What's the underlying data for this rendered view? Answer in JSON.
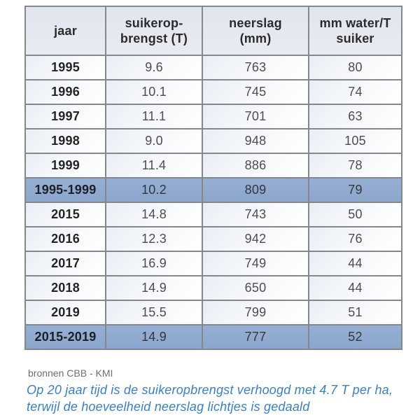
{
  "colors": {
    "highlight_row": "#8fa9ce",
    "header_bg": "#e4e6ee",
    "border": "#84878c",
    "caption_blue": "#3a80c4",
    "source_gray": "#6d6e71"
  },
  "table": {
    "headers": [
      {
        "key": "jaar",
        "label": "jaar"
      },
      {
        "key": "sugar",
        "label": "suikerop-\nbrengst (T)"
      },
      {
        "key": "rain",
        "label": "neerslag\n(mm)"
      },
      {
        "key": "ratio",
        "label": "mm water/T\nsuiker"
      }
    ],
    "rows": [
      {
        "jaar": "1995",
        "sugar": "9.6",
        "rain": "763",
        "ratio": "80",
        "highlight": false
      },
      {
        "jaar": "1996",
        "sugar": "10.1",
        "rain": "745",
        "ratio": "74",
        "highlight": false
      },
      {
        "jaar": "1997",
        "sugar": "11.1",
        "rain": "701",
        "ratio": "63",
        "highlight": false
      },
      {
        "jaar": "1998",
        "sugar": "9.0",
        "rain": "948",
        "ratio": "105",
        "highlight": false
      },
      {
        "jaar": "1999",
        "sugar": "11.4",
        "rain": "886",
        "ratio": "78",
        "highlight": false
      },
      {
        "jaar": "1995-1999",
        "sugar": "10.2",
        "rain": "809",
        "ratio": "79",
        "highlight": true
      },
      {
        "jaar": "2015",
        "sugar": "14.8",
        "rain": "743",
        "ratio": "50",
        "highlight": false
      },
      {
        "jaar": "2016",
        "sugar": "12.3",
        "rain": "942",
        "ratio": "76",
        "highlight": false
      },
      {
        "jaar": "2017",
        "sugar": "16.9",
        "rain": "749",
        "ratio": "44",
        "highlight": false
      },
      {
        "jaar": "2018",
        "sugar": "14.9",
        "rain": "650",
        "ratio": "44",
        "highlight": false
      },
      {
        "jaar": "2019",
        "sugar": "15.5",
        "rain": "799",
        "ratio": "51",
        "highlight": false
      },
      {
        "jaar": "2015-2019",
        "sugar": "14.9",
        "rain": "777",
        "ratio": "52",
        "highlight": true
      }
    ]
  },
  "source": "bronnen CBB - KMI",
  "caption": "Op 20 jaar tijd is de suikeropbrengst verhoogd met 4.7 T per ha, terwijl de hoeveelheid neerslag lichtjes is gedaald",
  "chart_data": {
    "type": "table",
    "title": "",
    "columns": [
      "jaar",
      "suikerop-brengst (T)",
      "neerslag (mm)",
      "mm water/T suiker"
    ],
    "rows": [
      [
        "1995",
        9.6,
        763,
        80
      ],
      [
        "1996",
        10.1,
        745,
        74
      ],
      [
        "1997",
        11.1,
        701,
        63
      ],
      [
        "1998",
        9.0,
        948,
        105
      ],
      [
        "1999",
        11.4,
        886,
        78
      ],
      [
        "1995-1999",
        10.2,
        809,
        79
      ],
      [
        "2015",
        14.8,
        743,
        50
      ],
      [
        "2016",
        12.3,
        942,
        76
      ],
      [
        "2017",
        16.9,
        749,
        44
      ],
      [
        "2018",
        14.9,
        650,
        44
      ],
      [
        "2019",
        15.5,
        799,
        51
      ],
      [
        "2015-2019",
        14.9,
        777,
        52
      ]
    ],
    "highlighted_rows": [
      "1995-1999",
      "2015-2019"
    ],
    "source": "bronnen CBB - KMI",
    "annotation": "Op 20 jaar tijd is de suikeropbrengst verhoogd met 4.7 T per ha, terwijl de hoeveelheid neerslag lichtjes is gedaald"
  }
}
